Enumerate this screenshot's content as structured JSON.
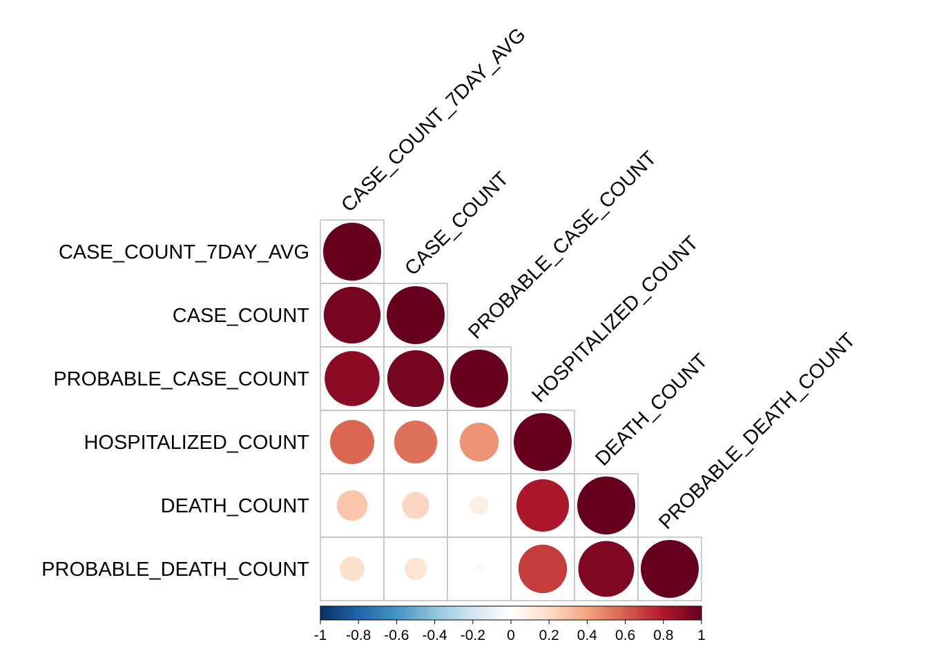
{
  "chart_data": {
    "type": "heatmap",
    "subtype": "correlation-circles-lower-triangle",
    "title": "",
    "variables": [
      "CASE_COUNT_7DAY_AVG",
      "CASE_COUNT",
      "PROBABLE_CASE_COUNT",
      "HOSPITALIZED_COUNT",
      "DEATH_COUNT",
      "PROBABLE_DEATH_COUNT"
    ],
    "matrix": [
      [
        1.0
      ],
      [
        0.96,
        1.0
      ],
      [
        0.9,
        0.96,
        1.0
      ],
      [
        0.58,
        0.55,
        0.45,
        1.0
      ],
      [
        0.28,
        0.22,
        0.1,
        0.82,
        1.0
      ],
      [
        0.18,
        0.15,
        -0.03,
        0.7,
        0.93,
        1.0
      ]
    ],
    "colorbar": {
      "range": [
        -1,
        1
      ],
      "tick_labels": [
        "-1",
        "-0.8",
        "-0.6",
        "-0.4",
        "-0.2",
        "0",
        "0.2",
        "0.4",
        "0.6",
        "0.8",
        "1"
      ],
      "placement": "bottom",
      "colors": [
        "#053061",
        "#2166AC",
        "#4393C3",
        "#92C5DE",
        "#D1E5F0",
        "#FFFFFF",
        "#FDDBC7",
        "#F4A582",
        "#D6604D",
        "#B2182B",
        "#67001F"
      ]
    },
    "grid": true
  }
}
